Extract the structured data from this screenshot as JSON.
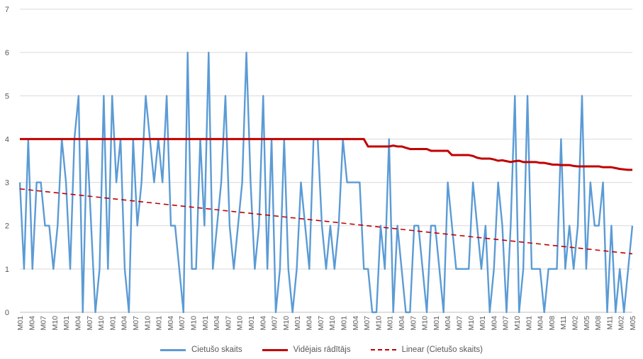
{
  "chart_data": {
    "type": "line",
    "title": "",
    "xlabel": "",
    "ylabel": "",
    "ylim": [
      0,
      7
    ],
    "yticks": [
      "0",
      "1",
      "2",
      "3",
      "4",
      "5",
      "6",
      "7"
    ],
    "grid": true,
    "legend_position": "bottom",
    "x_tick_labels": [
      "M01",
      "M04",
      "M07",
      "M10",
      "M01",
      "M04",
      "M07",
      "M10",
      "M01",
      "M04",
      "M07",
      "M10",
      "M01",
      "M04",
      "M07",
      "M10",
      "M01",
      "M04",
      "M07",
      "M10",
      "M01",
      "M04",
      "M07",
      "M10",
      "M01",
      "M04",
      "M07",
      "M10",
      "M01",
      "M04",
      "M07",
      "M10",
      "M01",
      "M04",
      "M07",
      "M10",
      "M01",
      "M04",
      "M07",
      "M10",
      "M01",
      "M04",
      "M07",
      "M10",
      "M01",
      "M04",
      "M08",
      "M11",
      "M02",
      "M05",
      "M08",
      "M11",
      "M02",
      "M05"
    ],
    "series": [
      {
        "name": "Cietušo skaits",
        "style": "solid",
        "color": "#5B9BD5",
        "values": [
          3,
          1,
          4,
          1,
          3,
          3,
          2,
          2,
          1,
          2,
          4,
          3,
          1,
          4,
          5,
          0,
          4,
          2,
          0,
          1,
          5,
          1,
          5,
          3,
          4,
          1,
          0,
          4,
          2,
          3,
          5,
          4,
          3,
          4,
          3,
          5,
          2,
          2,
          1,
          0,
          6,
          1,
          1,
          4,
          2,
          6,
          1,
          2,
          3,
          5,
          2,
          1,
          2,
          3,
          6,
          3,
          1,
          2,
          5,
          1,
          4,
          0,
          1,
          4,
          1,
          0,
          1,
          3,
          2,
          1,
          4,
          4,
          2,
          1,
          2,
          1,
          2,
          4,
          3,
          3,
          3,
          3,
          1,
          1,
          0,
          0,
          2,
          1,
          4,
          0,
          2,
          1,
          0,
          0,
          2,
          2,
          1,
          0,
          2,
          2,
          1,
          0,
          3,
          2,
          1,
          1,
          1,
          1,
          3,
          2,
          1,
          2,
          0,
          1,
          3,
          2,
          0,
          2,
          5,
          0,
          1,
          5,
          1,
          1,
          1,
          0,
          1,
          1,
          1,
          4,
          1,
          2,
          1,
          2,
          5,
          1,
          3,
          2,
          2,
          3,
          0,
          2,
          0,
          1,
          0,
          1,
          2
        ]
      },
      {
        "name": "Vidējais rādītājs",
        "style": "solid",
        "color": "#C00000",
        "values": [
          4.0,
          4.0,
          4.0,
          4.0,
          4.0,
          4.0,
          4.0,
          4.0,
          4.0,
          4.0,
          4.0,
          4.0,
          4.0,
          4.0,
          4.0,
          4.0,
          4.0,
          4.0,
          4.0,
          4.0,
          4.0,
          4.0,
          4.0,
          4.0,
          4.0,
          4.0,
          4.0,
          4.0,
          4.0,
          4.0,
          4.0,
          4.0,
          4.0,
          4.0,
          4.0,
          4.0,
          4.0,
          4.0,
          4.0,
          4.0,
          4.0,
          4.0,
          4.0,
          4.0,
          4.0,
          4.0,
          4.0,
          4.0,
          4.0,
          4.0,
          4.0,
          4.0,
          4.0,
          4.0,
          4.0,
          4.0,
          4.0,
          4.0,
          4.0,
          4.0,
          4.0,
          4.0,
          4.0,
          4.0,
          4.0,
          4.0,
          4.0,
          4.0,
          4.0,
          4.0,
          4.0,
          4.0,
          4.0,
          4.0,
          4.0,
          4.0,
          4.0,
          4.0,
          4.0,
          4.0,
          4.0,
          4.0,
          4.0,
          3.83,
          3.83,
          3.83,
          3.83,
          3.83,
          3.83,
          3.85,
          3.83,
          3.83,
          3.8,
          3.77,
          3.77,
          3.77,
          3.77,
          3.77,
          3.73,
          3.73,
          3.73,
          3.73,
          3.73,
          3.63,
          3.63,
          3.63,
          3.63,
          3.63,
          3.61,
          3.57,
          3.55,
          3.55,
          3.55,
          3.53,
          3.5,
          3.51,
          3.49,
          3.47,
          3.49,
          3.5,
          3.47,
          3.47,
          3.47,
          3.47,
          3.45,
          3.45,
          3.43,
          3.41,
          3.41,
          3.4,
          3.4,
          3.4,
          3.38,
          3.37,
          3.37,
          3.37,
          3.37,
          3.37,
          3.37,
          3.35,
          3.35,
          3.35,
          3.33,
          3.31,
          3.3,
          3.29,
          3.29
        ]
      },
      {
        "name": "Linear (Cietušo skaits)",
        "style": "dashed",
        "color": "#C00000",
        "values_start": 2.85,
        "values_end": 1.35
      }
    ]
  }
}
